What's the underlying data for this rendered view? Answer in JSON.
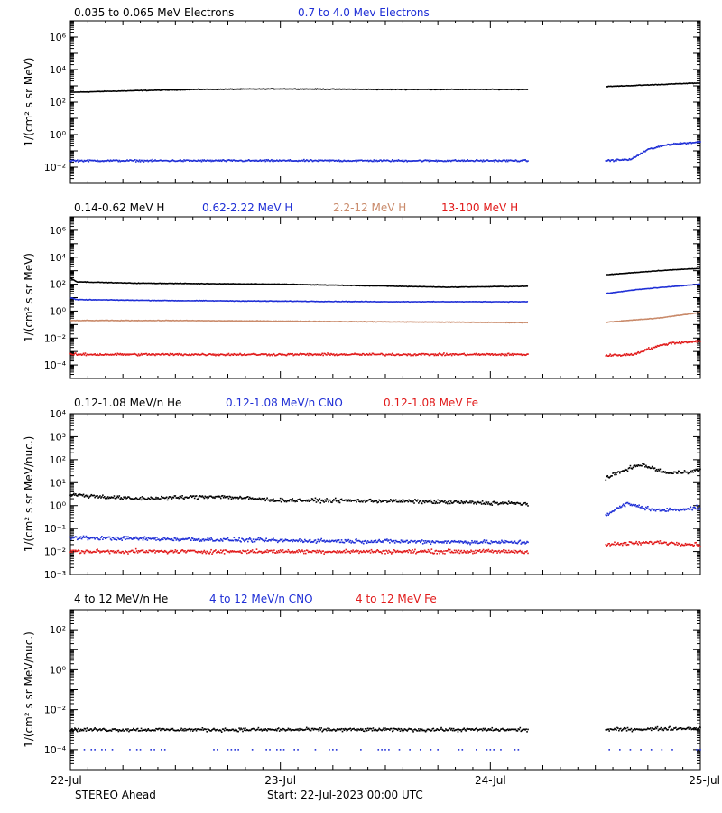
{
  "colors": {
    "black": "#000000",
    "blue": "#1f2fd6",
    "tan": "#c98a6a",
    "red": "#e11a1a",
    "axis": "#000000"
  },
  "footer": {
    "spacecraft": "STEREO Ahead",
    "start": "Start: 22-Jul-2023 00:00 UTC"
  },
  "chart_data": [
    {
      "type": "scatter",
      "xlabel": "",
      "ylabel": "1/(cm² s sr MeV)",
      "yscale": "log",
      "ylim": [
        0.001,
        10000000
      ],
      "ytick_exponents": [
        -2,
        0,
        2,
        4,
        6
      ],
      "xlim": [
        0,
        3
      ],
      "x_ticks": [
        "22-Jul",
        "23-Jul",
        "24-Jul",
        "25-Jul"
      ],
      "data_gaps": [
        [
          2.18,
          2.55
        ]
      ],
      "series": [
        {
          "name": "0.035 to 0.065 MeV Electrons",
          "color_key": "black",
          "marker": "line",
          "values": [
            [
              0.0,
              400
            ],
            [
              0.3,
              500
            ],
            [
              0.6,
              600
            ],
            [
              1.0,
              650
            ],
            [
              1.5,
              600
            ],
            [
              2.18,
              600
            ],
            [
              2.55,
              900
            ],
            [
              2.8,
              1200
            ],
            [
              3.0,
              1500
            ]
          ]
        },
        {
          "name": "0.7 to 4.0 Mev Electrons",
          "color_key": "blue",
          "marker": "dots",
          "values": [
            [
              0.0,
              0.025
            ],
            [
              1.0,
              0.025
            ],
            [
              2.18,
              0.025
            ],
            [
              2.55,
              0.025
            ],
            [
              2.67,
              0.03
            ],
            [
              2.75,
              0.12
            ],
            [
              2.85,
              0.25
            ],
            [
              3.0,
              0.35
            ]
          ]
        }
      ]
    },
    {
      "type": "scatter",
      "xlabel": "",
      "ylabel": "1/(cm² s sr MeV)",
      "yscale": "log",
      "ylim": [
        1e-05,
        10000000
      ],
      "ytick_exponents": [
        -4,
        -2,
        0,
        2,
        4,
        6
      ],
      "xlim": [
        0,
        3
      ],
      "data_gaps": [
        [
          2.18,
          2.55
        ]
      ],
      "series": [
        {
          "name": "0.14-0.62 MeV H",
          "color_key": "black",
          "marker": "line",
          "values": [
            [
              0.0,
              300
            ],
            [
              0.03,
              150
            ],
            [
              0.3,
              120
            ],
            [
              1.0,
              100
            ],
            [
              1.8,
              60
            ],
            [
              2.18,
              70
            ],
            [
              2.55,
              500
            ],
            [
              2.8,
              1000
            ],
            [
              3.0,
              1500
            ]
          ]
        },
        {
          "name": "0.62-2.22 MeV H",
          "color_key": "blue",
          "marker": "line",
          "values": [
            [
              0.0,
              10
            ],
            [
              0.03,
              7
            ],
            [
              0.5,
              6
            ],
            [
              1.5,
              5
            ],
            [
              2.18,
              5
            ],
            [
              2.55,
              20
            ],
            [
              2.7,
              40
            ],
            [
              3.0,
              100
            ]
          ]
        },
        {
          "name": "2.2-12 MeV H",
          "color_key": "tan",
          "marker": "line",
          "values": [
            [
              0.0,
              0.2
            ],
            [
              0.5,
              0.2
            ],
            [
              1.5,
              0.16
            ],
            [
              2.18,
              0.14
            ],
            [
              2.55,
              0.15
            ],
            [
              2.8,
              0.3
            ],
            [
              3.0,
              0.8
            ]
          ]
        },
        {
          "name": "13-100 MeV H",
          "color_key": "red",
          "marker": "dots",
          "values": [
            [
              0.0,
              0.0006
            ],
            [
              1.0,
              0.0006
            ],
            [
              2.18,
              0.0006
            ],
            [
              2.55,
              0.0005
            ],
            [
              2.68,
              0.0006
            ],
            [
              2.75,
              0.0015
            ],
            [
              2.85,
              0.004
            ],
            [
              3.0,
              0.006
            ]
          ]
        }
      ]
    },
    {
      "type": "scatter",
      "xlabel": "",
      "ylabel": "1/(cm² s sr MeV/nuc.)",
      "yscale": "log",
      "ylim": [
        0.001,
        10000
      ],
      "ytick_exponents": [
        -3,
        -2,
        -1,
        0,
        1,
        2,
        3,
        4
      ],
      "xlim": [
        0,
        3
      ],
      "data_gaps": [
        [
          2.18,
          2.55
        ]
      ],
      "series": [
        {
          "name": "0.12-1.08 MeV/n He",
          "color_key": "black",
          "marker": "dots",
          "values": [
            [
              0.0,
              3.0
            ],
            [
              0.3,
              2.0
            ],
            [
              0.7,
              2.5
            ],
            [
              1.0,
              1.7
            ],
            [
              1.5,
              1.6
            ],
            [
              2.18,
              1.2
            ],
            [
              2.55,
              15
            ],
            [
              2.65,
              40
            ],
            [
              2.72,
              60
            ],
            [
              2.85,
              25
            ],
            [
              3.0,
              35
            ]
          ]
        },
        {
          "name": "0.12-1.08 MeV/n CNO",
          "color_key": "blue",
          "marker": "dots",
          "values": [
            [
              0.0,
              0.04
            ],
            [
              1.0,
              0.03
            ],
            [
              2.18,
              0.025
            ],
            [
              2.55,
              0.4
            ],
            [
              2.65,
              1.2
            ],
            [
              2.8,
              0.6
            ],
            [
              3.0,
              0.8
            ]
          ]
        },
        {
          "name": "0.12-1.08 MeV Fe",
          "color_key": "red",
          "marker": "dots",
          "values": [
            [
              0.0,
              0.01
            ],
            [
              1.0,
              0.01
            ],
            [
              2.18,
              0.01
            ],
            [
              2.55,
              0.02
            ],
            [
              2.8,
              0.025
            ],
            [
              3.0,
              0.02
            ]
          ]
        }
      ]
    },
    {
      "type": "scatter",
      "xlabel": "",
      "ylabel": "1/(cm² s sr MeV/nuc.)",
      "yscale": "log",
      "ylim": [
        1e-05,
        1000
      ],
      "ytick_exponents": [
        -4,
        -2,
        0,
        2
      ],
      "xlim": [
        0,
        3
      ],
      "x_ticks": [
        "22-Jul",
        "23-Jul",
        "24-Jul",
        "25-Jul"
      ],
      "data_gaps": [
        [
          2.18,
          2.55
        ]
      ],
      "series": [
        {
          "name": "4 to 12 MeV/n He",
          "color_key": "black",
          "marker": "dots",
          "values": [
            [
              0.0,
              0.001
            ],
            [
              1.0,
              0.001
            ],
            [
              2.18,
              0.001
            ],
            [
              2.55,
              0.001
            ],
            [
              3.0,
              0.0012
            ]
          ]
        },
        {
          "name": "4 to 12 MeV/n CNO",
          "color_key": "blue",
          "marker": "sparse",
          "values": [
            [
              0.0,
              0.0001
            ],
            [
              1.0,
              0.0001
            ],
            [
              2.18,
              0.0001
            ],
            [
              2.55,
              0.0001
            ],
            [
              3.0,
              0.0001
            ]
          ]
        },
        {
          "name": "4 to 12 MeV Fe",
          "color_key": "red",
          "marker": "none",
          "values": []
        }
      ]
    }
  ]
}
